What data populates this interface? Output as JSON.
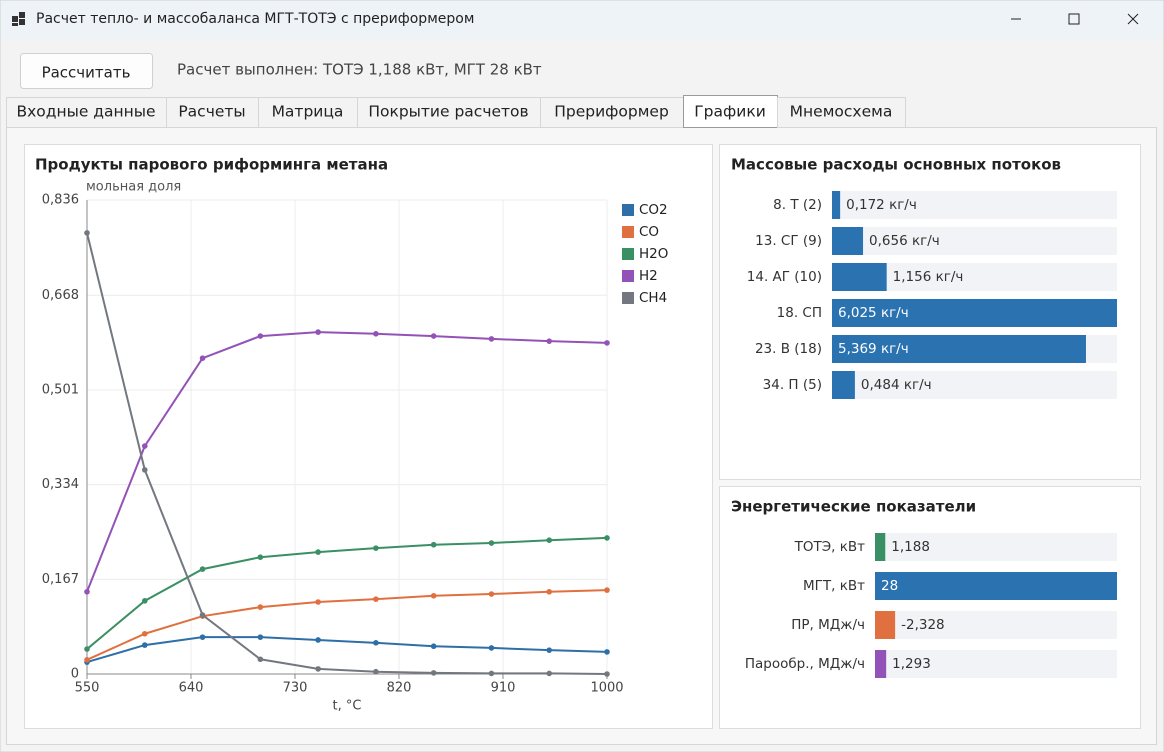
{
  "window": {
    "title": "Расчет тепло- и массобаланса МГТ-ТОТЭ с прериформером"
  },
  "toolbar": {
    "button": "Рассчитать",
    "status": "Расчет выполнен: ТОТЭ 1,188 кВт, МГТ 28 кВт"
  },
  "tabs": {
    "items": [
      "Входные данные",
      "Расчеты",
      "Матрица",
      "Покрытие расчетов",
      "Прериформер",
      "Графики",
      "Мнемосхема"
    ],
    "selected": 5
  },
  "chart_data": [
    {
      "type": "line",
      "title": "Продукты парового риформинга метана",
      "y_label": "мольная доля",
      "x_label": "t, °C",
      "x": [
        550,
        600,
        650,
        700,
        750,
        800,
        850,
        900,
        950,
        1000
      ],
      "xlim": [
        550,
        1000
      ],
      "xticks": [
        550,
        640,
        730,
        820,
        910,
        1000
      ],
      "ylim": [
        0,
        0.836
      ],
      "yticks": [
        0,
        {
          "value": 0.167,
          "label": "0,167"
        },
        {
          "value": 0.334,
          "label": "0,334"
        },
        {
          "value": 0.501,
          "label": "0,501"
        },
        {
          "value": 0.668,
          "label": "0,668"
        },
        {
          "value": 0.836,
          "label": "0,836"
        }
      ],
      "grid": true,
      "legend": "right",
      "series": [
        {
          "name": "CO2",
          "color": "#2e6fa8",
          "values": [
            0.021,
            0.051,
            0.065,
            0.065,
            0.06,
            0.055,
            0.049,
            0.046,
            0.042,
            0.039
          ]
        },
        {
          "name": "CO",
          "color": "#e07040",
          "values": [
            0.025,
            0.071,
            0.102,
            0.118,
            0.127,
            0.132,
            0.138,
            0.141,
            0.145,
            0.148
          ]
        },
        {
          "name": "H2O",
          "color": "#3a8f64",
          "values": [
            0.044,
            0.129,
            0.185,
            0.206,
            0.215,
            0.222,
            0.228,
            0.231,
            0.236,
            0.24
          ]
        },
        {
          "name": "H2",
          "color": "#9352b8",
          "values": [
            0.145,
            0.402,
            0.557,
            0.596,
            0.603,
            0.6,
            0.596,
            0.591,
            0.587,
            0.584
          ]
        },
        {
          "name": "CH4",
          "color": "#737780",
          "values": [
            0.778,
            0.36,
            0.104,
            0.026,
            0.009,
            0.004,
            0.002,
            0.001,
            0.001,
            0.0
          ]
        }
      ]
    },
    {
      "type": "barh",
      "title": "Массовые расходы основных потоков",
      "categories": [
        "8. Т (2)",
        "13. СГ (9)",
        "14. АГ (10)",
        "18. СП",
        "23. В (18)",
        "34. П (5)"
      ],
      "values": [
        0.172,
        0.656,
        1.156,
        6.025,
        5.369,
        0.484
      ],
      "value_labels": [
        "0,172 кг/ч",
        "0,656 кг/ч",
        "1,156 кг/ч",
        "6,025 кг/ч",
        "5,369 кг/ч",
        "0,484 кг/ч"
      ],
      "colors": [
        "#2b72b0",
        "#2b72b0",
        "#2b72b0",
        "#2b72b0",
        "#2b72b0",
        "#2b72b0"
      ]
    },
    {
      "type": "barh",
      "title": "Энергетические показатели",
      "categories": [
        "ТОТЭ, кВт",
        "МГТ, кВт",
        "ПР, МДж/ч",
        "Парообр., МДж/ч"
      ],
      "values": [
        1.188,
        28,
        -2.328,
        1.293
      ],
      "value_labels": [
        "1,188",
        "28",
        "-2,328",
        "1,293"
      ],
      "colors": [
        "#3a8f64",
        "#2b72b0",
        "#e07040",
        "#9352b8"
      ]
    }
  ]
}
